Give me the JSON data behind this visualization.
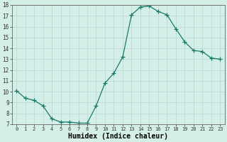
{
  "x": [
    0,
    1,
    2,
    3,
    4,
    5,
    6,
    7,
    8,
    9,
    10,
    11,
    12,
    13,
    14,
    15,
    16,
    17,
    18,
    19,
    20,
    21,
    22,
    23
  ],
  "y": [
    10.1,
    9.4,
    9.2,
    8.7,
    7.5,
    7.2,
    7.2,
    7.1,
    7.1,
    8.7,
    10.8,
    11.7,
    13.2,
    17.1,
    17.8,
    17.9,
    17.4,
    17.1,
    15.8,
    14.6,
    13.8,
    13.7,
    13.1,
    13.0
  ],
  "line_color": "#1a7a6a",
  "marker_color": "#1a7a6a",
  "bg_color": "#d4eee8",
  "grid_color": "#b8d8d0",
  "xlabel": "Humidex (Indice chaleur)",
  "ylim": [
    7,
    18
  ],
  "xlim": [
    -0.5,
    23.5
  ],
  "yticks": [
    7,
    8,
    9,
    10,
    11,
    12,
    13,
    14,
    15,
    16,
    17,
    18
  ],
  "xticks": [
    0,
    1,
    2,
    3,
    4,
    5,
    6,
    7,
    8,
    9,
    10,
    11,
    12,
    13,
    14,
    15,
    16,
    17,
    18,
    19,
    20,
    21,
    22,
    23
  ],
  "xlabel_fontsize": 7,
  "tick_fontsize": 5,
  "ylabel_fontsize": 6
}
